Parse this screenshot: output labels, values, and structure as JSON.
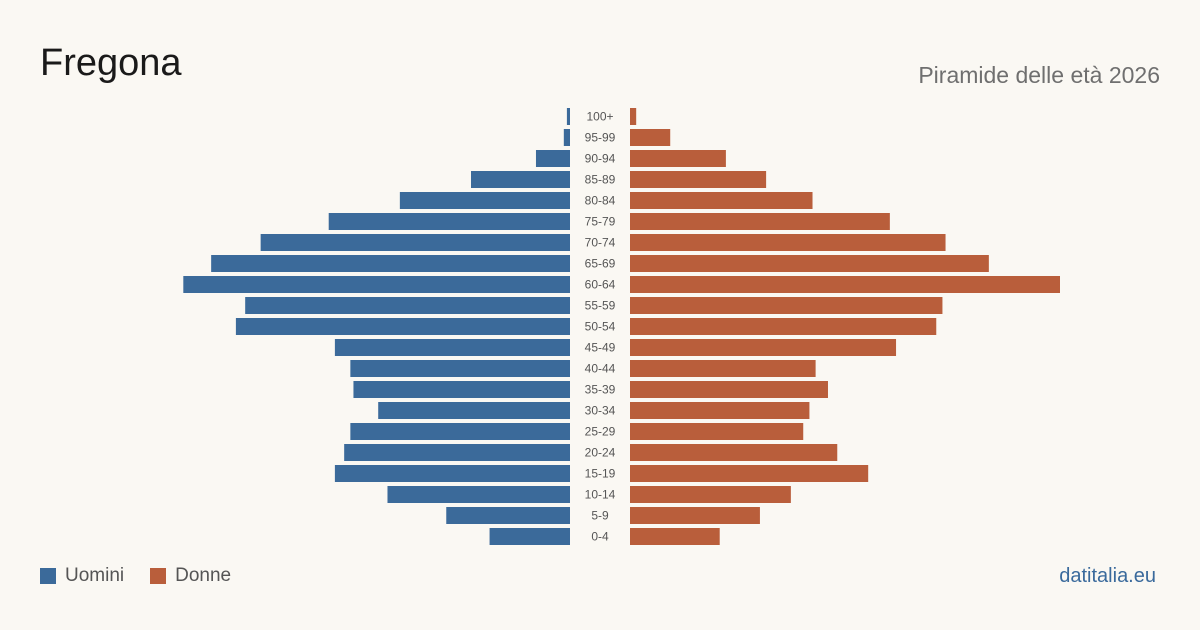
{
  "header": {
    "title": "Fregona",
    "subtitle": "Piramide delle età 2026"
  },
  "legend": {
    "male_label": "Uomini",
    "female_label": "Donne"
  },
  "source": "datitalia.eu",
  "colors": {
    "male": "#3b6a9a",
    "female": "#b95e3b",
    "background": "#faf8f3"
  },
  "chart_data": {
    "type": "bar",
    "orientation": "horizontal-pyramid",
    "categories": [
      "100+",
      "95-99",
      "90-94",
      "85-89",
      "80-84",
      "75-79",
      "70-74",
      "65-69",
      "60-64",
      "55-59",
      "50-54",
      "45-49",
      "40-44",
      "35-39",
      "30-34",
      "25-29",
      "20-24",
      "15-19",
      "10-14",
      "5-9",
      "0-4"
    ],
    "series": [
      {
        "name": "Uomini",
        "values": [
          1,
          2,
          11,
          32,
          55,
          78,
          100,
          116,
          125,
          105,
          108,
          76,
          71,
          70,
          62,
          71,
          73,
          76,
          59,
          40,
          26
        ]
      },
      {
        "name": "Donne",
        "values": [
          2,
          13,
          31,
          44,
          59,
          84,
          102,
          116,
          139,
          101,
          99,
          86,
          60,
          64,
          58,
          56,
          67,
          77,
          52,
          42,
          29
        ]
      }
    ],
    "title": "Fregona",
    "subtitle": "Piramide delle età 2026",
    "legend_position": "bottom-left",
    "grid": false
  }
}
